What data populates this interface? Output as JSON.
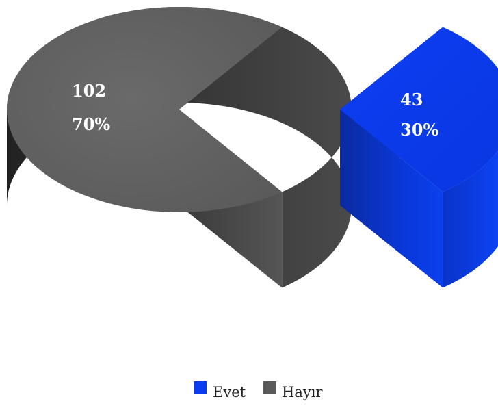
{
  "chart_data": {
    "type": "pie",
    "style": "3d-exploded",
    "categories": [
      "Evet",
      "Hayır"
    ],
    "values": [
      43,
      102
    ],
    "percent_labels": [
      "30%",
      "70%"
    ],
    "value_labels": [
      "43",
      "102"
    ],
    "colors": [
      "#0a3cf0",
      "#5a5a5a"
    ],
    "legend": {
      "placement": "bottom",
      "entries": [
        "Evet",
        "Hayır"
      ]
    }
  }
}
